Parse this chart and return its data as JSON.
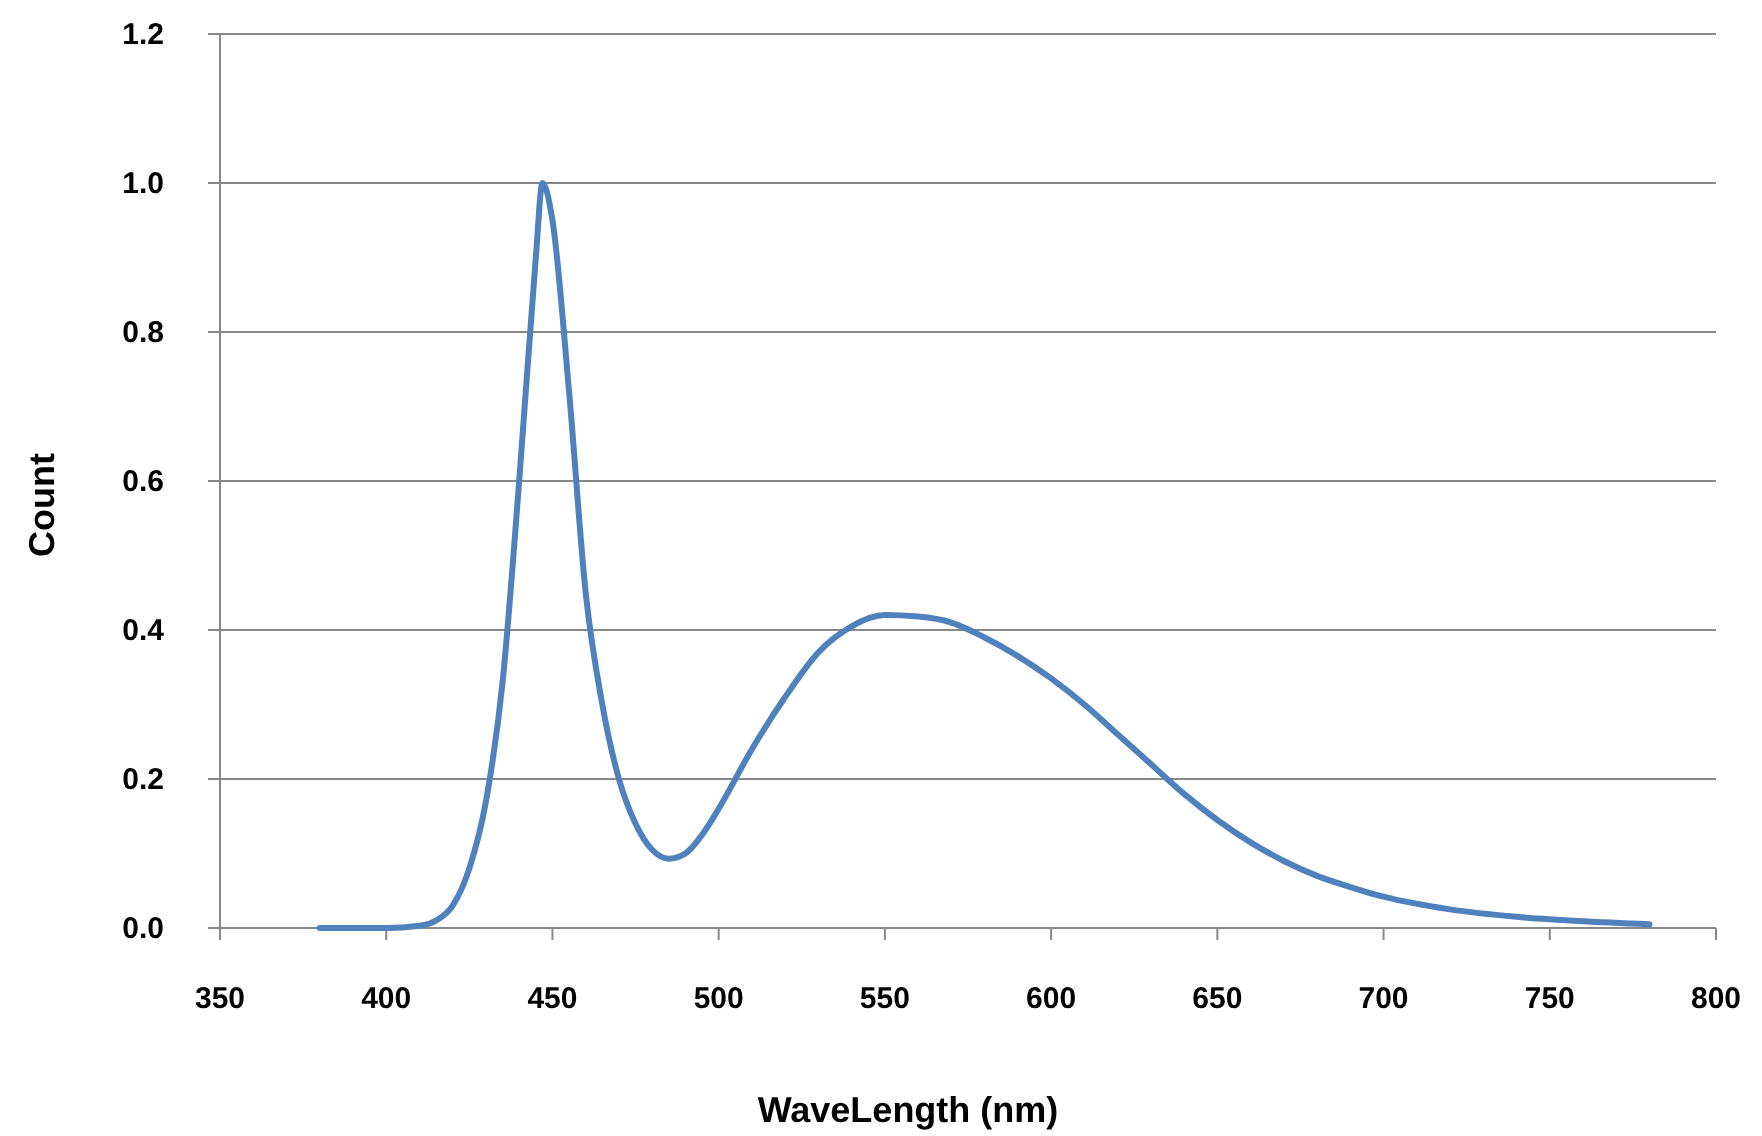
{
  "chart_data": {
    "type": "line",
    "xlabel": "WaveLength (nm)",
    "ylabel": "Count",
    "x": [
      380,
      400,
      410,
      415,
      420,
      425,
      430,
      435,
      440,
      445,
      447,
      450,
      455,
      460,
      465,
      470,
      475,
      480,
      485,
      490,
      495,
      500,
      510,
      520,
      530,
      540,
      550,
      560,
      570,
      580,
      590,
      600,
      610,
      620,
      630,
      640,
      650,
      660,
      670,
      680,
      690,
      700,
      720,
      740,
      760,
      780
    ],
    "series": [
      {
        "color": "#4f81bd",
        "values": [
          0,
          0,
          0.003,
          0.01,
          0.03,
          0.08,
          0.17,
          0.33,
          0.6,
          0.9,
          1.0,
          0.95,
          0.72,
          0.45,
          0.3,
          0.2,
          0.14,
          0.105,
          0.093,
          0.1,
          0.125,
          0.16,
          0.24,
          0.31,
          0.37,
          0.405,
          0.42,
          0.418,
          0.41,
          0.39,
          0.365,
          0.335,
          0.3,
          0.26,
          0.22,
          0.18,
          0.145,
          0.115,
          0.09,
          0.07,
          0.055,
          0.042,
          0.025,
          0.015,
          0.009,
          0.005
        ]
      }
    ],
    "xlim": [
      350,
      800
    ],
    "xticks": [
      350,
      400,
      450,
      500,
      550,
      600,
      650,
      700,
      750,
      800
    ],
    "ylim": [
      0,
      1.2
    ],
    "yticks": [
      {
        "value": 0,
        "label": "0.0"
      },
      {
        "value": 0.2,
        "label": "0.2"
      },
      {
        "value": 0.4,
        "label": "0.4"
      },
      {
        "value": 0.6,
        "label": "0.6"
      },
      {
        "value": 0.8,
        "label": "0.8"
      },
      {
        "value": 1,
        "label": "1.0"
      },
      {
        "value": 1.2,
        "label": "1.2"
      }
    ],
    "grid": "y",
    "marker": "none",
    "line_style": "solid"
  }
}
